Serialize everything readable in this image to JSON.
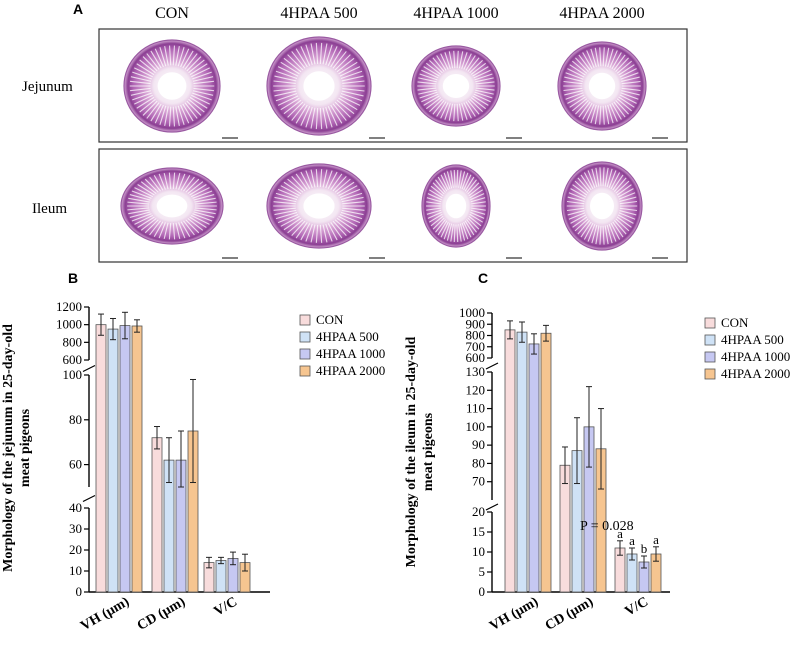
{
  "panel_labels": {
    "a": "A",
    "b": "B",
    "c": "C"
  },
  "histology": {
    "columns": [
      "CON",
      "4HPAA 500",
      "4HPAA 1000",
      "4HPAA 2000"
    ],
    "rows": [
      "Jejunum",
      "Ileum"
    ]
  },
  "legend": {
    "entries": [
      "CON",
      "4HPAA 500",
      "4HPAA 1000",
      "4HPAA 2000"
    ],
    "colors": [
      "#f8dcdc",
      "#cfe2f6",
      "#c6c8f2",
      "#f6c590"
    ]
  },
  "chart_data": [
    {
      "type": "bar",
      "panel": "B",
      "ylabel_line1": "Morphology of the jejunum in 25-day-old",
      "ylabel_line2": "meat pigeons",
      "categories": [
        "VH (μm)",
        "CD (μm)",
        "V/C"
      ],
      "series": [
        {
          "name": "CON",
          "values": [
            1000,
            72,
            14
          ],
          "errors": [
            120,
            5,
            2.5
          ]
        },
        {
          "name": "4HPAA 500",
          "values": [
            950,
            62,
            15
          ],
          "errors": [
            120,
            10,
            1.5
          ]
        },
        {
          "name": "4HPAA 1000",
          "values": [
            990,
            62,
            16
          ],
          "errors": [
            150,
            13,
            3
          ]
        },
        {
          "name": "4HPAA 2000",
          "values": [
            985,
            75,
            14
          ],
          "errors": [
            70,
            23,
            4
          ]
        }
      ],
      "segments": [
        {
          "range": [
            0,
            40
          ],
          "ticks": [
            0,
            10,
            20,
            30,
            40
          ]
        },
        {
          "range": [
            50,
            100
          ],
          "ticks": [
            60,
            80,
            100
          ]
        },
        {
          "range": [
            600,
            1200
          ],
          "ticks": [
            600,
            800,
            1000,
            1200
          ]
        }
      ]
    },
    {
      "type": "bar",
      "panel": "C",
      "ylabel_line1": "Morphology of the ileum in 25-day-old",
      "ylabel_line2": "meat pigeons",
      "categories": [
        "VH (μm)",
        "CD (μm)",
        "V/C"
      ],
      "series": [
        {
          "name": "CON",
          "values": [
            850,
            79,
            11
          ],
          "errors": [
            80,
            10,
            1.8
          ]
        },
        {
          "name": "4HPAA 500",
          "values": [
            830,
            87,
            9.5
          ],
          "errors": [
            90,
            18,
            1.5
          ]
        },
        {
          "name": "4HPAA 1000",
          "values": [
            725,
            100,
            7.5
          ],
          "errors": [
            90,
            22,
            1.5
          ]
        },
        {
          "name": "4HPAA 2000",
          "values": [
            820,
            88,
            9.5
          ],
          "errors": [
            70,
            22,
            1.8
          ]
        }
      ],
      "significance": [
        "a",
        "a",
        "b",
        "a"
      ],
      "annotation": "P = 0.028",
      "segments": [
        {
          "range": [
            0,
            20
          ],
          "ticks": [
            0,
            5,
            10,
            15,
            20
          ]
        },
        {
          "range": [
            60,
            130
          ],
          "ticks": [
            70,
            80,
            90,
            100,
            110,
            120,
            130
          ]
        },
        {
          "range": [
            600,
            1000
          ],
          "ticks": [
            600,
            700,
            800,
            900,
            1000
          ]
        }
      ]
    }
  ]
}
